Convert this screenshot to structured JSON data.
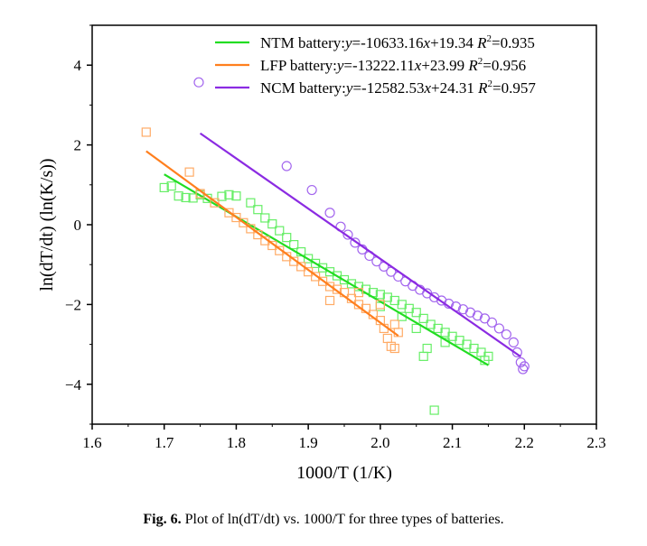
{
  "chart_data": {
    "type": "scatter",
    "xlabel": "1000/T (1/K)",
    "ylabel": "ln(dT/dt) (ln(K/s))",
    "xlim": [
      1.6,
      2.3
    ],
    "ylim": [
      -5,
      5
    ],
    "xticks": [
      "1.6",
      "1.7",
      "1.8",
      "1.9",
      "2.0",
      "2.1",
      "2.2",
      "2.3"
    ],
    "yticks": [
      "4",
      "2",
      "0",
      "−2",
      "−4"
    ],
    "grid": false,
    "legend_position": "top-right",
    "series": [
      {
        "name": "NTM battery:",
        "slope": "-10633.16",
        "intercept": "+19.34",
        "r2": "0.935",
        "color": "#22dd22",
        "marker_color": "#66ee66",
        "marker": "square",
        "fit_x": [
          1.7,
          2.15
        ],
        "points": [
          [
            1.7,
            0.93
          ],
          [
            1.71,
            0.97
          ],
          [
            1.72,
            0.72
          ],
          [
            1.73,
            0.68
          ],
          [
            1.74,
            0.67
          ],
          [
            1.75,
            0.75
          ],
          [
            1.76,
            0.66
          ],
          [
            1.78,
            0.71
          ],
          [
            1.79,
            0.75
          ],
          [
            1.8,
            0.72
          ],
          [
            1.82,
            0.55
          ],
          [
            1.83,
            0.38
          ],
          [
            1.84,
            0.17
          ],
          [
            1.85,
            0.02
          ],
          [
            1.86,
            -0.15
          ],
          [
            1.87,
            -0.32
          ],
          [
            1.88,
            -0.5
          ],
          [
            1.89,
            -0.68
          ],
          [
            1.9,
            -0.85
          ],
          [
            1.91,
            -0.97
          ],
          [
            1.92,
            -1.08
          ],
          [
            1.93,
            -1.18
          ],
          [
            1.94,
            -1.28
          ],
          [
            1.95,
            -1.38
          ],
          [
            1.96,
            -1.48
          ],
          [
            1.97,
            -1.55
          ],
          [
            1.98,
            -1.62
          ],
          [
            1.99,
            -1.7
          ],
          [
            2.0,
            -1.75
          ],
          [
            2.01,
            -1.82
          ],
          [
            2.02,
            -1.9
          ],
          [
            2.03,
            -2.0
          ],
          [
            2.04,
            -2.1
          ],
          [
            2.05,
            -2.2
          ],
          [
            2.06,
            -2.35
          ],
          [
            2.06,
            -3.3
          ],
          [
            2.065,
            -3.1
          ],
          [
            2.07,
            -2.5
          ],
          [
            2.075,
            -4.65
          ],
          [
            2.08,
            -2.6
          ],
          [
            2.09,
            -2.7
          ],
          [
            2.1,
            -2.8
          ],
          [
            2.11,
            -2.9
          ],
          [
            2.12,
            -3.0
          ],
          [
            2.13,
            -3.1
          ],
          [
            2.14,
            -3.2
          ],
          [
            2.145,
            -3.4
          ],
          [
            2.15,
            -3.3
          ],
          [
            2.0,
            -2.05
          ],
          [
            2.03,
            -2.3
          ],
          [
            2.05,
            -2.6
          ],
          [
            2.09,
            -2.95
          ]
        ]
      },
      {
        "name": "LFP battery:",
        "slope": "-13222.11",
        "intercept": "+23.99",
        "r2": "0.956",
        "color": "#ff7f1e",
        "marker_color": "#ffab66",
        "marker": "square",
        "fit_x": [
          1.675,
          2.025
        ],
        "points": [
          [
            1.675,
            2.32
          ],
          [
            1.735,
            1.32
          ],
          [
            1.75,
            0.78
          ],
          [
            1.77,
            0.55
          ],
          [
            1.79,
            0.3
          ],
          [
            1.8,
            0.18
          ],
          [
            1.81,
            0.05
          ],
          [
            1.82,
            -0.1
          ],
          [
            1.83,
            -0.25
          ],
          [
            1.84,
            -0.4
          ],
          [
            1.85,
            -0.52
          ],
          [
            1.86,
            -0.65
          ],
          [
            1.87,
            -0.8
          ],
          [
            1.88,
            -0.92
          ],
          [
            1.89,
            -1.05
          ],
          [
            1.9,
            -1.18
          ],
          [
            1.91,
            -1.3
          ],
          [
            1.92,
            -1.42
          ],
          [
            1.93,
            -1.55
          ],
          [
            1.94,
            -1.62
          ],
          [
            1.95,
            -1.7
          ],
          [
            1.96,
            -1.85
          ],
          [
            1.97,
            -2.0
          ],
          [
            1.98,
            -2.1
          ],
          [
            1.99,
            -2.25
          ],
          [
            2.0,
            -2.4
          ],
          [
            2.005,
            -2.6
          ],
          [
            2.01,
            -2.85
          ],
          [
            2.015,
            -3.05
          ],
          [
            2.02,
            -3.1
          ],
          [
            2.02,
            -2.5
          ],
          [
            2.025,
            -2.7
          ],
          [
            1.93,
            -1.9
          ],
          [
            1.97,
            -1.7
          ],
          [
            2.0,
            -2.0
          ]
        ]
      },
      {
        "name": "NCM battery:",
        "slope": "-12582.53",
        "intercept": "+24.31",
        "r2": "0.957",
        "color": "#8b2be2",
        "marker_color": "#a366ee",
        "marker": "circle",
        "fit_x": [
          1.75,
          2.195
        ],
        "points": [
          [
            1.748,
            3.57
          ],
          [
            1.87,
            1.47
          ],
          [
            1.905,
            0.87
          ],
          [
            1.93,
            0.3
          ],
          [
            1.945,
            -0.05
          ],
          [
            1.955,
            -0.25
          ],
          [
            1.965,
            -0.45
          ],
          [
            1.975,
            -0.62
          ],
          [
            1.985,
            -0.78
          ],
          [
            1.995,
            -0.92
          ],
          [
            2.005,
            -1.05
          ],
          [
            2.015,
            -1.18
          ],
          [
            2.025,
            -1.3
          ],
          [
            2.035,
            -1.42
          ],
          [
            2.045,
            -1.53
          ],
          [
            2.055,
            -1.63
          ],
          [
            2.065,
            -1.72
          ],
          [
            2.075,
            -1.82
          ],
          [
            2.085,
            -1.9
          ],
          [
            2.095,
            -1.98
          ],
          [
            2.105,
            -2.05
          ],
          [
            2.115,
            -2.12
          ],
          [
            2.125,
            -2.2
          ],
          [
            2.135,
            -2.28
          ],
          [
            2.145,
            -2.35
          ],
          [
            2.155,
            -2.45
          ],
          [
            2.165,
            -2.6
          ],
          [
            2.175,
            -2.75
          ],
          [
            2.185,
            -2.95
          ],
          [
            2.19,
            -3.2
          ],
          [
            2.195,
            -3.45
          ],
          [
            2.198,
            -3.62
          ],
          [
            2.2,
            -3.55
          ]
        ]
      }
    ]
  },
  "caption": {
    "label": "Fig. 6.",
    "text": " Plot of ln(dT/dt) vs. 1000/T for three types of batteries."
  }
}
